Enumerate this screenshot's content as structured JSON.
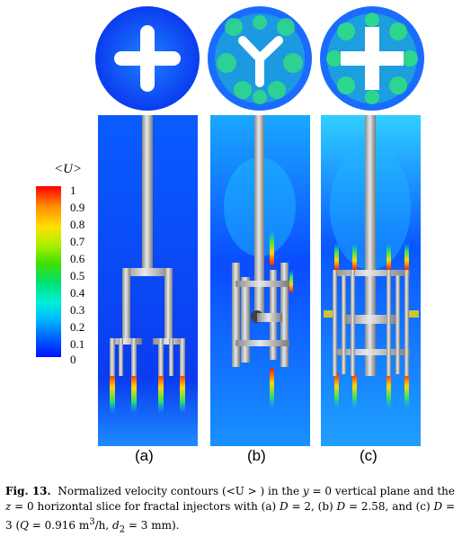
{
  "colorbar": {
    "title": "<U>",
    "ticks": [
      "1",
      "0.9",
      "0.8",
      "0.7",
      "0.6",
      "0.5",
      "0.4",
      "0.3",
      "0.2",
      "0.1",
      "0"
    ]
  },
  "panels": [
    {
      "label": "(a)",
      "fractal_dimension": "2"
    },
    {
      "label": "(b)",
      "fractal_dimension": "2.58"
    },
    {
      "label": "(c)",
      "fractal_dimension": "3"
    }
  ],
  "caption": {
    "fig_label": "Fig. 13.",
    "text_1": "Normalized velocity contours (<U > ) in the ",
    "y_var": "y",
    "text_2": " = 0 vertical plane and the ",
    "z_var": "z",
    "text_3": " = 0 horizontal slice for fractal injectors with (a) ",
    "d_var_a": "D",
    "text_4": " = 2, (b) ",
    "d_var_b": "D",
    "text_5": " = 2.58, and (c) ",
    "d_var_c": "D",
    "text_6": " = 3 (",
    "q_var": "Q",
    "text_7": " = 0.916 m",
    "q_exp": "3",
    "text_8": "/h, ",
    "d2_var": "d",
    "d2_sub": "2",
    "text_9": " = 3 mm)."
  }
}
